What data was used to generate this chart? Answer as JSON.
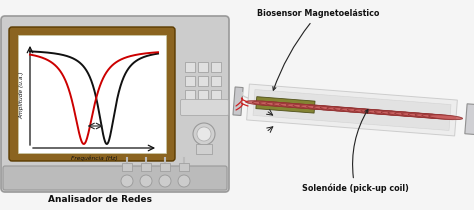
{
  "bg_color": "#f5f5f5",
  "device_body_color": "#cccccc",
  "device_body_edge": "#999999",
  "screen_frame_color": "#8B6420",
  "screen_bg": "#ffffff",
  "axis_color": "#222222",
  "curve_black_color": "#111111",
  "curve_red_color": "#cc0000",
  "label_below": "Analisador de Redes",
  "xlabel": "Frequência (Hz)",
  "ylabel": "Amplitude (u.a.)",
  "label_solenoid": "Solenóide (pick-up coil)",
  "label_biosensor": "Biosensor Magnetoelástico",
  "coil_color": "#c86060",
  "coil_edge": "#903030",
  "tube_color": "#dcdcdc",
  "tube_edge": "#aaaaaa",
  "sensor_fill": "#7a7a20",
  "sensor_edge": "#454510",
  "wire_red": "#cc2222",
  "wire_gray": "#cccccc",
  "connector_color": "#c8c8c8",
  "btn_face": "#e0e0e0",
  "btn_edge": "#999999"
}
